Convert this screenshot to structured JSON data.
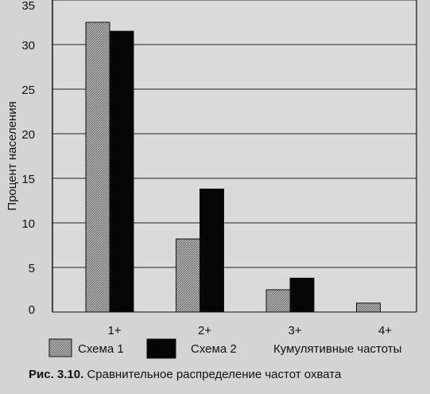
{
  "chart_data": {
    "type": "bar",
    "categories": [
      "1+",
      "2+",
      "3+",
      "4+"
    ],
    "series": [
      {
        "name": "Схема 1",
        "values": [
          32.5,
          8.2,
          2.5,
          1.0
        ],
        "color": "#9a9a9a"
      },
      {
        "name": "Схема 2",
        "values": [
          31.5,
          13.8,
          3.8,
          null
        ],
        "color": "#050505"
      }
    ],
    "ylabel": "Процент населения",
    "xlabel": "Кумулятивные частоты",
    "ylim": [
      0,
      35
    ],
    "yticks": [
      0,
      5,
      10,
      15,
      20,
      25,
      30,
      35
    ],
    "grid": true,
    "legend_position": "bottom"
  },
  "caption": {
    "figure_label": "Рис. 3.10.",
    "text": "Сравнительное распределение частот охвата"
  }
}
